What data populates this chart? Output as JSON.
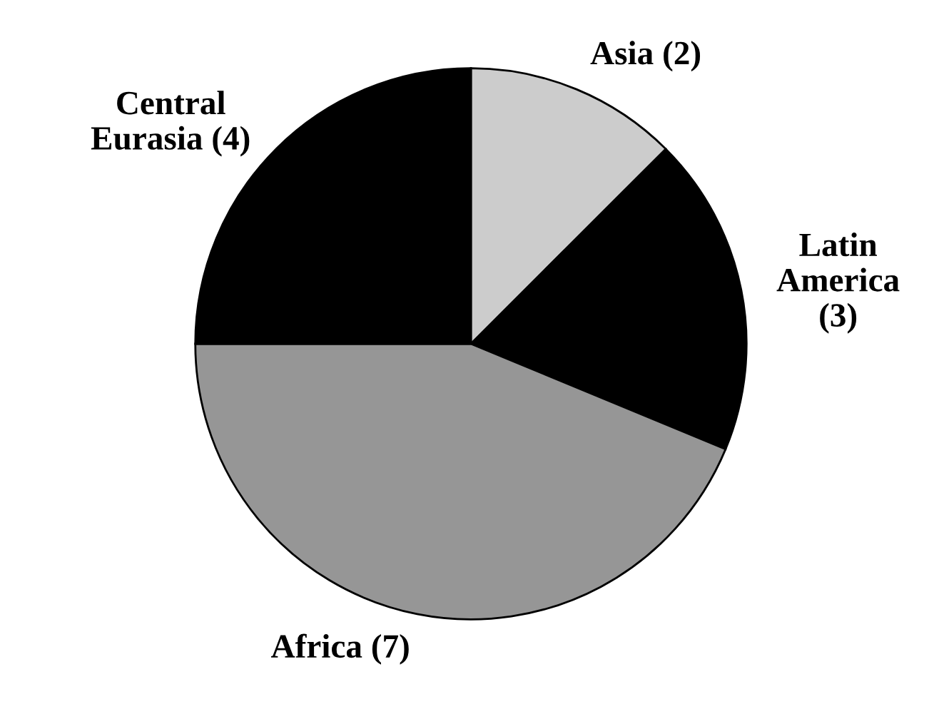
{
  "chart_data": {
    "type": "pie",
    "categories": [
      "Asia (2)",
      "Latin\nAmerica\n(3)",
      "Africa (7)",
      "Central\nEurasia (4)"
    ],
    "values": [
      2,
      3,
      7,
      4
    ],
    "colors": [
      "#cccccc",
      "#000000",
      "#969696",
      "#000000"
    ]
  }
}
